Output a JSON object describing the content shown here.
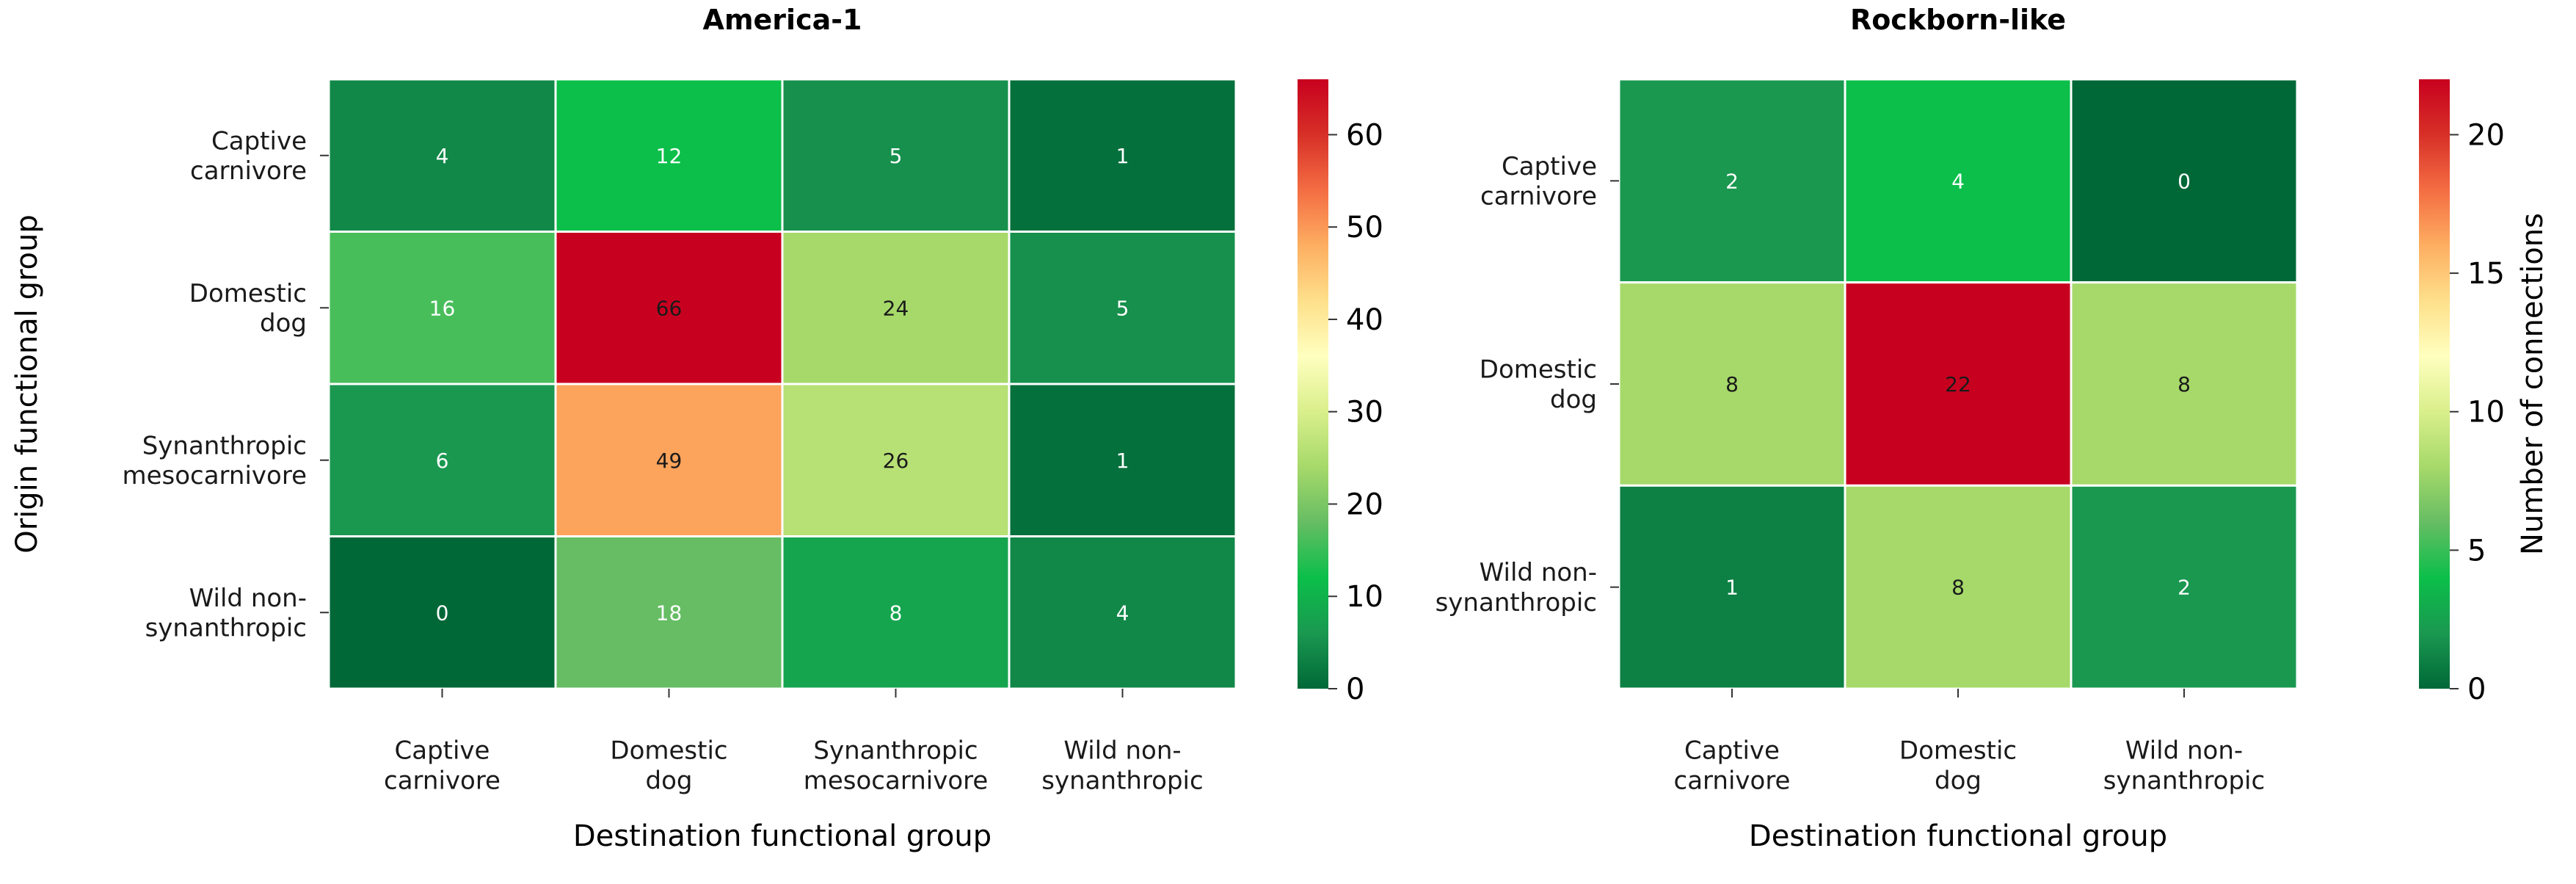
{
  "chart_data": [
    {
      "type": "heatmap",
      "title": "America-1",
      "xlabel": "Destination functional group",
      "ylabel": "Origin functional group",
      "x_categories": [
        "Captive\ncarnivore",
        "Domestic\ndog",
        "Synanthropic\nmesocarnivore",
        "Wild non-\nsynanthropic"
      ],
      "y_categories": [
        "Captive\ncarnivore",
        "Domestic\ndog",
        "Synanthropic\nmesocarnivore",
        "Wild non-\nsynanthropic"
      ],
      "values": [
        [
          4,
          12,
          5,
          1
        ],
        [
          16,
          66,
          24,
          5
        ],
        [
          6,
          49,
          26,
          1
        ],
        [
          0,
          18,
          8,
          4
        ]
      ],
      "colorbar": {
        "range": [
          0,
          66
        ],
        "ticks": [
          0,
          10,
          20,
          30,
          40,
          50,
          60
        ],
        "label": ""
      },
      "colormap": [
        "#006837",
        "#1a9850",
        "#0bbf4a",
        "#66bd63",
        "#a6d96a",
        "#d9ef8b",
        "#ffffbf",
        "#fee08b",
        "#fdae61",
        "#f46d43",
        "#d73027",
        "#c8001f"
      ]
    },
    {
      "type": "heatmap",
      "title": "Rockborn-like",
      "xlabel": "Destination functional group",
      "ylabel": "",
      "x_categories": [
        "Captive\ncarnivore",
        "Domestic\ndog",
        "Wild non-\nsynanthropic"
      ],
      "y_categories": [
        "Captive\ncarnivore",
        "Domestic\ndog",
        "Wild non-\nsynanthropic"
      ],
      "values": [
        [
          2,
          4,
          0
        ],
        [
          8,
          22,
          8
        ],
        [
          1,
          8,
          2
        ]
      ],
      "colorbar": {
        "range": [
          0,
          22
        ],
        "ticks": [
          0,
          5,
          10,
          15,
          20
        ],
        "label": "Number of connections"
      },
      "colormap": [
        "#006837",
        "#1a9850",
        "#0bbf4a",
        "#66bd63",
        "#a6d96a",
        "#d9ef8b",
        "#ffffbf",
        "#fee08b",
        "#fdae61",
        "#f46d43",
        "#d73027",
        "#c8001f"
      ]
    }
  ]
}
